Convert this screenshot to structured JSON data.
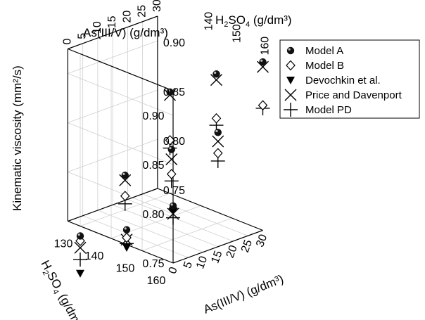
{
  "chart_data": {
    "type": "scatter",
    "projection": "3d",
    "axes": {
      "z": {
        "label": "Kinematic viscosity (mm²/s)",
        "range": [
          0.75,
          0.92
        ],
        "ticks_left": [
          "0.75",
          "0.80",
          "0.85",
          "0.90"
        ],
        "ticks_right": [
          "0.75",
          "0.80",
          "0.85",
          "0.90"
        ]
      },
      "as_top": {
        "label": "As(III/V) (g/dm³)",
        "ticks": [
          "0",
          "5",
          "10",
          "15",
          "20",
          "25",
          "30"
        ]
      },
      "h2so4_top": {
        "label_main": "H",
        "label_sub": "2",
        "label_rest": "SO",
        "label_sub2": "4",
        "label_tail": " (g/dm³)",
        "ticks": [
          "160",
          "150",
          "140"
        ]
      },
      "h2so4_bottom": {
        "label_main": "H",
        "label_sub": "2",
        "label_rest": "SO",
        "label_sub2": "4",
        "label_tail": " (g/dm³)",
        "ticks": [
          "160",
          "150",
          "140",
          "130"
        ]
      },
      "as_bottom": {
        "label": "As(III/V) (g/dm³)",
        "ticks": [
          "0",
          "5",
          "10",
          "15",
          "20",
          "25",
          "30"
        ]
      }
    },
    "legend": {
      "position": "top-right",
      "entries": [
        "Model A",
        "Model B",
        "Devochkin et al.",
        "Price and Davenport",
        "Model PD"
      ]
    },
    "series": [
      {
        "name": "Model A",
        "marker": "sphere",
        "points": [
          {
            "as": 0,
            "h2so4": 160,
            "v": 0.808
          },
          {
            "as": 0,
            "h2so4": 145,
            "v": 0.765
          },
          {
            "as": 0,
            "h2so4": 130,
            "v": 0.74
          },
          {
            "as": 15,
            "h2so4": 160,
            "v": 0.866
          },
          {
            "as": 15,
            "h2so4": 145,
            "v": 0.83
          },
          {
            "as": 15,
            "h2so4": 130,
            "v": 0.785
          },
          {
            "as": 30,
            "h2so4": 160,
            "v": 0.921
          },
          {
            "as": 30,
            "h2so4": 145,
            "v": 0.89
          },
          {
            "as": 30,
            "h2so4": 130,
            "v": 0.853
          }
        ]
      },
      {
        "name": "Model B",
        "marker": "diamond",
        "points": [
          {
            "as": 0,
            "h2so4": 160,
            "v": 0.805
          },
          {
            "as": 0,
            "h2so4": 145,
            "v": 0.757
          },
          {
            "as": 0,
            "h2so4": 130,
            "v": 0.735
          },
          {
            "as": 15,
            "h2so4": 160,
            "v": 0.845
          },
          {
            "as": 15,
            "h2so4": 145,
            "v": 0.805
          },
          {
            "as": 15,
            "h2so4": 130,
            "v": 0.764
          },
          {
            "as": 30,
            "h2so4": 160,
            "v": 0.877
          },
          {
            "as": 30,
            "h2so4": 145,
            "v": 0.845
          },
          {
            "as": 30,
            "h2so4": 130,
            "v": 0.804
          }
        ]
      },
      {
        "name": "Devochkin et al.",
        "marker": "triangle-down",
        "points": [
          {
            "as": 0,
            "h2so4": 160,
            "v": 0.803
          },
          {
            "as": 0,
            "h2so4": 145,
            "v": 0.747
          },
          {
            "as": 0,
            "h2so4": 130,
            "v": 0.702
          }
        ]
      },
      {
        "name": "Price and Davenport",
        "marker": "x",
        "points": [
          {
            "as": 0,
            "h2so4": 160,
            "v": 0.8
          },
          {
            "as": 0,
            "h2so4": 145,
            "v": 0.755
          },
          {
            "as": 0,
            "h2so4": 130,
            "v": 0.728
          },
          {
            "as": 15,
            "h2so4": 160,
            "v": 0.857
          },
          {
            "as": 15,
            "h2so4": 145,
            "v": 0.82
          },
          {
            "as": 15,
            "h2so4": 130,
            "v": 0.78
          },
          {
            "as": 30,
            "h2so4": 160,
            "v": 0.916
          },
          {
            "as": 30,
            "h2so4": 145,
            "v": 0.884
          },
          {
            "as": 30,
            "h2so4": 130,
            "v": 0.85
          }
        ]
      },
      {
        "name": "Model PD",
        "marker": "plus",
        "points": [
          {
            "as": 0,
            "h2so4": 160,
            "v": 0.796
          },
          {
            "as": 0,
            "h2so4": 145,
            "v": 0.751
          },
          {
            "as": 0,
            "h2so4": 130,
            "v": 0.716
          },
          {
            "as": 15,
            "h2so4": 160,
            "v": 0.837
          },
          {
            "as": 15,
            "h2so4": 145,
            "v": 0.798
          },
          {
            "as": 15,
            "h2so4": 130,
            "v": 0.756
          },
          {
            "as": 30,
            "h2so4": 160,
            "v": 0.874
          },
          {
            "as": 30,
            "h2so4": 145,
            "v": 0.838
          },
          {
            "as": 30,
            "h2so4": 130,
            "v": 0.796
          }
        ]
      }
    ]
  }
}
